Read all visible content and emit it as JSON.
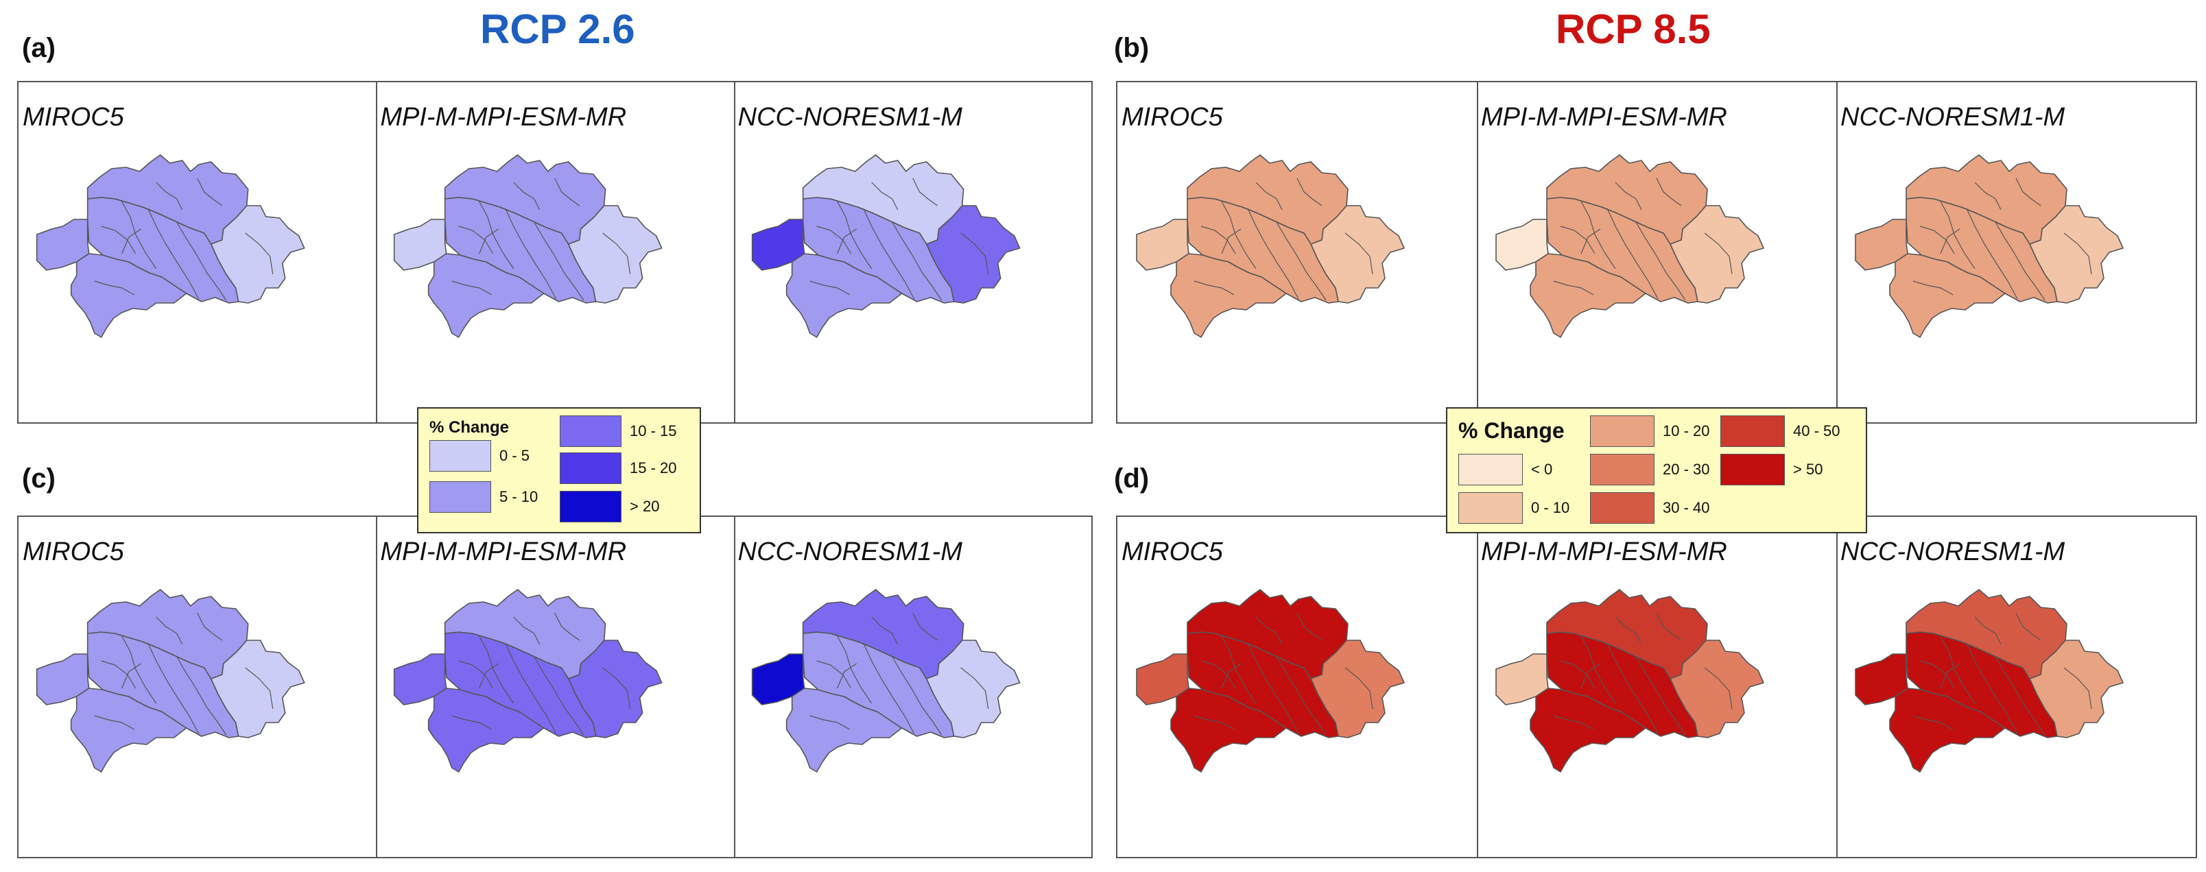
{
  "titles": {
    "left": "RCP 2.6",
    "right": "RCP 8.5"
  },
  "panel_labels": {
    "a": "(a)",
    "b": "(b)",
    "c": "(c)",
    "d": "(d)"
  },
  "models": [
    "MIROC5",
    "MPI-M-MPI-ESM-MR",
    "NCC-NORESM1-M"
  ],
  "colors": {
    "title_left": "#1e5fbf",
    "title_right": "#cc1111",
    "border_line": "#555555",
    "legend_bg": "#fefcc0"
  },
  "legend_rcp26": {
    "title": "% Change",
    "items": [
      {
        "label": "0 - 5",
        "color": "#cccdf6"
      },
      {
        "label": "5 - 10",
        "color": "#a09af0"
      },
      {
        "label": "10 - 15",
        "color": "#7b6af0"
      },
      {
        "label": "15 - 20",
        "color": "#4f39e9"
      },
      {
        "label": "> 20",
        "color": "#0e0ad0"
      }
    ]
  },
  "legend_rcp85": {
    "title": "% Change",
    "items": [
      {
        "label": "< 0",
        "color": "#fbe7d4"
      },
      {
        "label": "0 - 10",
        "color": "#f2c5a8"
      },
      {
        "label": "10 - 20",
        "color": "#e8a383"
      },
      {
        "label": "20 - 30",
        "color": "#e07e62"
      },
      {
        "label": "30 - 40",
        "color": "#d55a45"
      },
      {
        "label": "40 - 50",
        "color": "#cc3a2e"
      },
      {
        "label": "> 50",
        "color": "#c20e0e"
      }
    ]
  },
  "maps": {
    "a": [
      {
        "model": "MIROC5",
        "region_classes": {
          "north": "5 - 10",
          "center": "5 - 10",
          "east": "0 - 5",
          "west": "5 - 10",
          "southwest": "5 - 10"
        }
      },
      {
        "model": "MPI-M-MPI-ESM-MR",
        "region_classes": {
          "north": "5 - 10",
          "center": "5 - 10",
          "east": "0 - 5",
          "west": "0 - 5",
          "southwest": "5 - 10"
        }
      },
      {
        "model": "NCC-NORESM1-M",
        "region_classes": {
          "north": "0 - 5",
          "center": "5 - 10",
          "east": "10 - 15",
          "west": "15 - 20",
          "southwest": "5 - 10"
        }
      }
    ],
    "b": [
      {
        "model": "MIROC5",
        "region_classes": {
          "north": "10 - 20",
          "center": "10 - 20",
          "east": "0 - 10",
          "west": "0 - 10",
          "southwest": "10 - 20"
        }
      },
      {
        "model": "MPI-M-MPI-ESM-MR",
        "region_classes": {
          "north": "10 - 20",
          "center": "10 - 20",
          "east": "0 - 10",
          "west": "< 0",
          "southwest": "10 - 20"
        }
      },
      {
        "model": "NCC-NORESM1-M",
        "region_classes": {
          "north": "10 - 20",
          "center": "10 - 20",
          "east": "0 - 10",
          "west": "10 - 20",
          "southwest": "10 - 20"
        }
      }
    ],
    "c": [
      {
        "model": "MIROC5",
        "region_classes": {
          "north": "5 - 10",
          "center": "5 - 10",
          "east": "0 - 5",
          "west": "5 - 10",
          "southwest": "5 - 10"
        }
      },
      {
        "model": "MPI-M-MPI-ESM-MR",
        "region_classes": {
          "north": "5 - 10",
          "center": "10 - 15",
          "east": "10 - 15",
          "west": "10 - 15",
          "southwest": "10 - 15"
        }
      },
      {
        "model": "NCC-NORESM1-M",
        "region_classes": {
          "north": "10 - 15",
          "center": "5 - 10",
          "east": "0 - 5",
          "west": "> 20",
          "southwest": "5 - 10"
        }
      }
    ],
    "d": [
      {
        "model": "MIROC5",
        "region_classes": {
          "north": "> 50",
          "center": "> 50",
          "east": "20 - 30",
          "west": "30 - 40",
          "southwest": "> 50"
        }
      },
      {
        "model": "MPI-M-MPI-ESM-MR",
        "region_classes": {
          "north": "40 - 50",
          "center": "> 50",
          "east": "20 - 30",
          "west": "0 - 10",
          "southwest": "> 50"
        }
      },
      {
        "model": "NCC-NORESM1-M",
        "region_classes": {
          "north": "30 - 40",
          "center": "> 50",
          "east": "10 - 20",
          "west": "> 50",
          "southwest": "> 50"
        }
      }
    ]
  }
}
